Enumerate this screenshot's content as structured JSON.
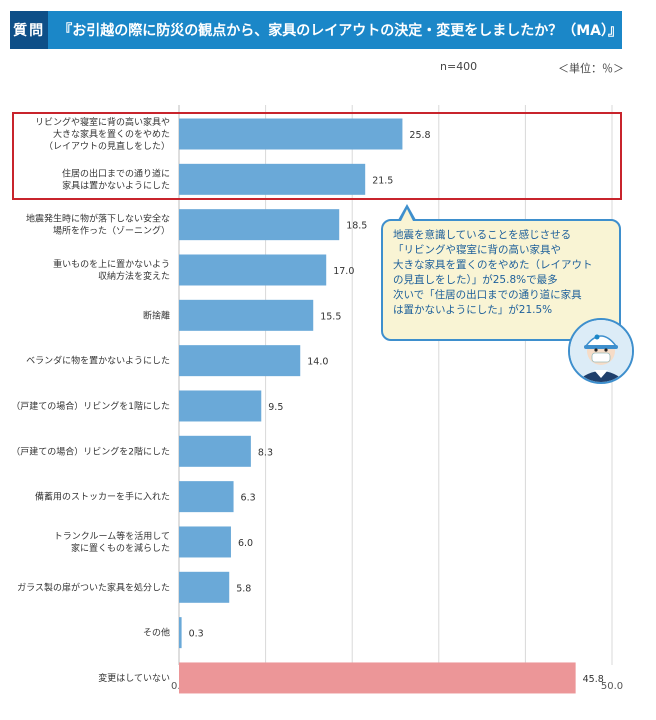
{
  "header": {
    "badge": "質問",
    "question": "『お引越の際に防災の観点から、家具のレイアウトの決定・変更をしましたか？（MA）』"
  },
  "meta": {
    "sample": "n=400",
    "unit": "＜単位：％＞"
  },
  "callout": {
    "lines": [
      "地震を意識していることを感じさせる",
      "「リビングや寝室に背の高い家具や",
      "大きな家具を置くのをやめた（レイアウト",
      "の見直しをした）」が25.8%で最多",
      "次いで「住居の出口までの通り道に家具",
      "は置かないようにした」が21.5%"
    ],
    "mascot": "mascot-icon"
  },
  "colors": {
    "bar": "#6aa9d8",
    "bar_highlight": "#ec9698",
    "header_bg": "#1b87c8",
    "badge_bg": "#0e4f88",
    "highlight_border": "#c8242c"
  },
  "chart_data": {
    "type": "bar",
    "orientation": "horizontal",
    "title": "お引越の際に防災の観点から、家具のレイアウトの決定・変更をしましたか？（MA）",
    "xlabel": "",
    "ylabel": "",
    "xlim": [
      0,
      50
    ],
    "ticks": [
      "0.0",
      "10.0",
      "20.0",
      "30.0",
      "40.0",
      "50.0"
    ],
    "grid": true,
    "categories": [
      [
        "リビングや寝室に背の高い家具や",
        "大きな家具を置くのをやめた",
        "（レイアウトの見直しをした）"
      ],
      [
        "住居の出口までの通り道に",
        "家具は置かないようにした"
      ],
      [
        "地震発生時に物が落下しない安全な",
        "場所を作った（ゾーニング）"
      ],
      [
        "重いものを上に置かないよう",
        "収納方法を変えた"
      ],
      [
        "断捨離"
      ],
      [
        "ベランダに物を置かないようにした"
      ],
      [
        "（戸建ての場合）リビングを1階にした"
      ],
      [
        "（戸建ての場合）リビングを2階にした"
      ],
      [
        "備蓄用のストッカーを手に入れた"
      ],
      [
        "トランクルーム等を活用して",
        "家に置くものを減らした"
      ],
      [
        "ガラス製の扉がついた家具を処分した"
      ],
      [
        "その他"
      ],
      [
        "変更はしていない"
      ]
    ],
    "values": [
      25.8,
      21.5,
      18.5,
      17.0,
      15.5,
      14.0,
      9.5,
      8.3,
      6.3,
      6.0,
      5.8,
      0.3,
      45.8
    ],
    "value_labels": [
      "25.8",
      "21.5",
      "18.5",
      "17.0",
      "15.5",
      "14.0",
      "9.5",
      "8.3",
      "6.3",
      "6.0",
      "5.8",
      "0.3",
      "45.8"
    ],
    "highlighted_categories": [
      0,
      1
    ],
    "special_color_index": 12
  }
}
